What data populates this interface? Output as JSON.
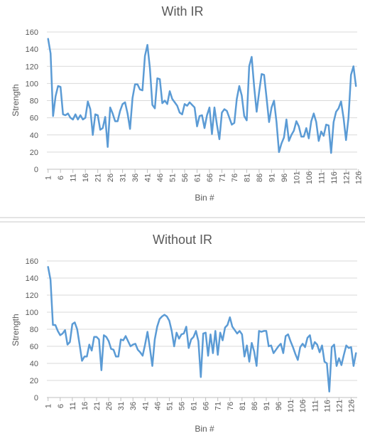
{
  "chart_data": [
    {
      "type": "line",
      "title": "With IR",
      "xlabel": "Bin #",
      "ylabel": "Strength",
      "ylim": [
        0,
        160
      ],
      "yticks": [
        0,
        20,
        40,
        60,
        80,
        100,
        120,
        140,
        160
      ],
      "xtick_labels": [
        "1",
        "6",
        "11",
        "16",
        "21",
        "26",
        "31",
        "36",
        "41",
        "46",
        "51",
        "56",
        "61",
        "66",
        "71",
        "76",
        "81",
        "86",
        "91",
        "96",
        "101",
        "106",
        "111",
        "116",
        "121",
        "126"
      ],
      "grid": true,
      "line_color": "#5B9BD5",
      "x_start": 1,
      "values": [
        152,
        135,
        62,
        85,
        97,
        96,
        64,
        63,
        65,
        60,
        58,
        64,
        58,
        63,
        58,
        60,
        79,
        70,
        40,
        64,
        63,
        46,
        48,
        61,
        26,
        72,
        65,
        56,
        56,
        68,
        76,
        78,
        65,
        47,
        83,
        99,
        99,
        93,
        92,
        132,
        145,
        118,
        75,
        71,
        106,
        105,
        77,
        80,
        76,
        91,
        82,
        78,
        74,
        66,
        64,
        76,
        74,
        78,
        75,
        72,
        50,
        62,
        63,
        48,
        63,
        72,
        41,
        72,
        52,
        35,
        66,
        70,
        68,
        60,
        52,
        54,
        82,
        97,
        86,
        62,
        57,
        120,
        131,
        96,
        67,
        90,
        111,
        110,
        83,
        55,
        72,
        80,
        55,
        20,
        30,
        37,
        58,
        33,
        40,
        45,
        56,
        50,
        38,
        38,
        48,
        36,
        56,
        65,
        55,
        33,
        44,
        39,
        52,
        51,
        19,
        55,
        67,
        71,
        79,
        60,
        34,
        60,
        110,
        120,
        97
      ]
    },
    {
      "type": "line",
      "title": "Without IR",
      "xlabel": "Bin #",
      "ylabel": "Strength",
      "ylim": [
        0,
        160
      ],
      "yticks": [
        0,
        20,
        40,
        60,
        80,
        100,
        120,
        140,
        160
      ],
      "xtick_labels": [
        "1",
        "6",
        "11",
        "16",
        "21",
        "26",
        "31",
        "36",
        "41",
        "46",
        "51",
        "56",
        "61",
        "66",
        "71",
        "76",
        "81",
        "86",
        "91",
        "96",
        "101",
        "106",
        "111",
        "116",
        "121",
        "126"
      ],
      "grid": true,
      "line_color": "#5B9BD5",
      "x_start": 1,
      "values": [
        153,
        138,
        85,
        85,
        78,
        73,
        75,
        79,
        62,
        65,
        86,
        88,
        80,
        62,
        43,
        48,
        48,
        62,
        55,
        71,
        71,
        68,
        32,
        73,
        71,
        66,
        57,
        56,
        48,
        48,
        68,
        67,
        72,
        66,
        60,
        62,
        63,
        56,
        53,
        49,
        62,
        77,
        58,
        37,
        68,
        83,
        92,
        95,
        97,
        95,
        90,
        78,
        60,
        76,
        69,
        74,
        75,
        83,
        58,
        68,
        71,
        78,
        66,
        24,
        75,
        76,
        49,
        74,
        52,
        78,
        50,
        76,
        67,
        82,
        85,
        94,
        83,
        79,
        75,
        78,
        74,
        48,
        61,
        42,
        64,
        54,
        37,
        78,
        77,
        78,
        78,
        60,
        61,
        52,
        56,
        60,
        63,
        52,
        72,
        74,
        66,
        59,
        51,
        44,
        59,
        63,
        59,
        70,
        73,
        57,
        65,
        62,
        53,
        61,
        42,
        40,
        7,
        59,
        62,
        37,
        46,
        38,
        50,
        61,
        58,
        59,
        37,
        52
      ]
    }
  ]
}
